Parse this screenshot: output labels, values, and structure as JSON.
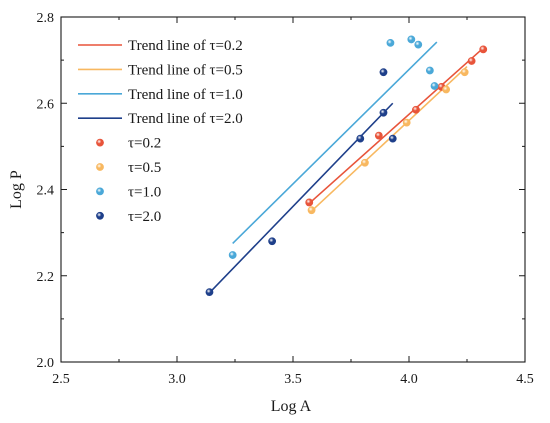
{
  "chart_data": {
    "type": "scatter",
    "title": "",
    "xlabel": "Log A",
    "ylabel": "Log P",
    "xlim": [
      2.5,
      4.5
    ],
    "ylim": [
      2.0,
      2.8
    ],
    "x_ticks": [
      "2.5",
      "3.0",
      "3.5",
      "4.0",
      "4.5"
    ],
    "y_ticks": [
      "2.0",
      "2.2",
      "2.4",
      "2.6",
      "2.8"
    ],
    "legend_position": "top-left",
    "grid": false,
    "series": [
      {
        "name": "τ=0.2",
        "color": "#e8543a",
        "trend_label": "Trend line of τ=0.2",
        "trend": [
          [
            3.56,
            2.363
          ],
          [
            4.32,
            2.728
          ]
        ],
        "points": [
          [
            3.57,
            2.37
          ],
          [
            3.87,
            2.525
          ],
          [
            4.03,
            2.585
          ],
          [
            4.14,
            2.638
          ],
          [
            4.27,
            2.698
          ],
          [
            4.32,
            2.725
          ]
        ]
      },
      {
        "name": "τ=0.5",
        "color": "#f8b860",
        "trend_label": "Trend line of τ=0.5",
        "trend": [
          [
            3.57,
            2.345
          ],
          [
            4.25,
            2.685
          ]
        ],
        "points": [
          [
            3.58,
            2.352
          ],
          [
            3.81,
            2.462
          ],
          [
            3.99,
            2.555
          ],
          [
            4.16,
            2.632
          ],
          [
            4.24,
            2.672
          ]
        ]
      },
      {
        "name": "τ=1.0",
        "color": "#4aa8d8",
        "trend_label": "Trend line of τ=1.0",
        "trend": [
          [
            3.24,
            2.275
          ],
          [
            4.12,
            2.742
          ]
        ],
        "points": [
          [
            3.24,
            2.248
          ],
          [
            3.92,
            2.74
          ],
          [
            4.01,
            2.748
          ],
          [
            4.04,
            2.736
          ],
          [
            4.09,
            2.676
          ],
          [
            4.11,
            2.64
          ]
        ]
      },
      {
        "name": "τ=2.0",
        "color": "#1e3f8a",
        "trend_label": "Trend line of τ=2.0",
        "trend": [
          [
            3.13,
            2.155
          ],
          [
            3.93,
            2.6
          ]
        ],
        "points": [
          [
            3.14,
            2.162
          ],
          [
            3.41,
            2.28
          ],
          [
            3.79,
            2.518
          ],
          [
            3.89,
            2.578
          ],
          [
            3.89,
            2.672
          ],
          [
            3.93,
            2.518
          ]
        ]
      }
    ]
  }
}
